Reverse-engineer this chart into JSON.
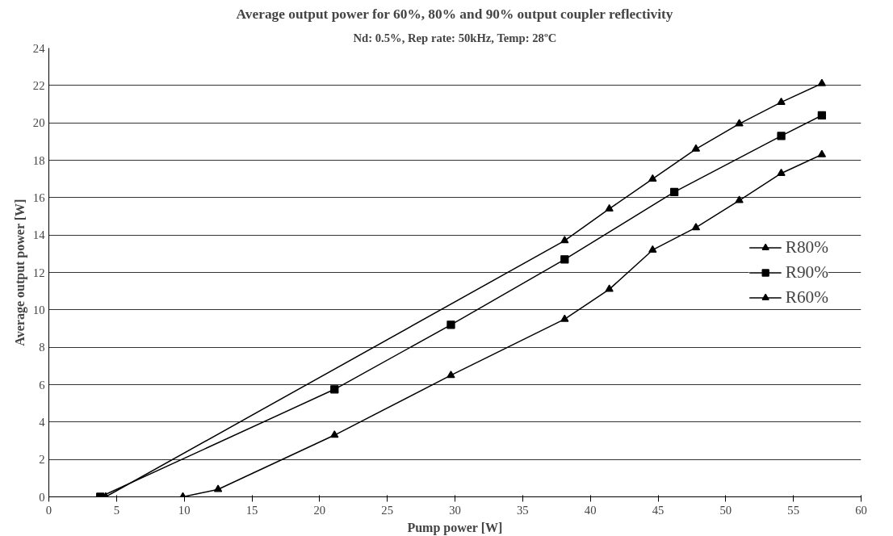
{
  "chart_data": {
    "type": "line",
    "title": "Average output power for 60%, 80% and 90% output coupler reflectivity",
    "subtitle": "Nd: 0.5%, Rep rate: 50kHz, Temp: 28ºC",
    "xlabel": "Pump power [W]",
    "ylabel": "Average output power [W]",
    "xlim": [
      0,
      60
    ],
    "xticks": [
      0,
      5,
      10,
      15,
      20,
      25,
      30,
      35,
      40,
      45,
      50,
      55,
      60
    ],
    "ylim": [
      0,
      24
    ],
    "yticks": [
      0,
      2,
      4,
      6,
      8,
      10,
      12,
      14,
      16,
      18,
      20,
      22,
      24
    ],
    "grid": "y",
    "legend": "right",
    "series": [
      {
        "name": "R80%",
        "color": "#000000",
        "marker": "triangle",
        "x": [
          4.2,
          38.1,
          41.4,
          44.6,
          47.8,
          51.0,
          54.1,
          57.1
        ],
        "values": [
          0,
          13.7,
          15.4,
          17.0,
          18.6,
          19.95,
          21.1,
          22.1
        ]
      },
      {
        "name": "R90%",
        "color": "#000000",
        "marker": "square",
        "x": [
          3.8,
          21.1,
          29.7,
          38.1,
          46.2,
          54.1,
          57.1
        ],
        "values": [
          0,
          5.75,
          9.2,
          12.7,
          16.3,
          19.3,
          20.4
        ]
      },
      {
        "name": "R60%",
        "color": "#000000",
        "marker": "triangle",
        "x": [
          9.9,
          12.5,
          21.1,
          29.7,
          38.1,
          41.4,
          44.6,
          47.8,
          51.0,
          54.1,
          57.1
        ],
        "values": [
          0,
          0.4,
          3.3,
          6.5,
          9.5,
          11.1,
          13.2,
          14.4,
          15.85,
          17.3,
          18.3
        ]
      }
    ]
  }
}
